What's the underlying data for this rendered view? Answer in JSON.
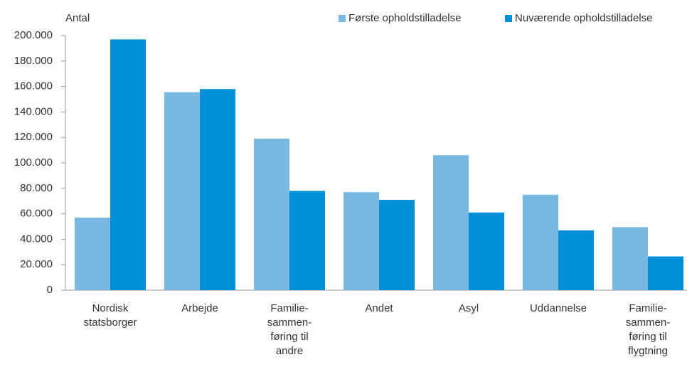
{
  "chart_data": {
    "type": "bar",
    "y_label": "Antal",
    "categories": [
      "Nordisk\nstatsborger",
      "Arbejde",
      "Familie-\nsammen-\nføring til\nandre",
      "Andet",
      "Asyl",
      "Uddannelse",
      "Familie-\nsammen-\nføring til\nflygtning"
    ],
    "series": [
      {
        "name": "Første opholdstilladelse",
        "color": "#7ab8e4",
        "values": [
          57000,
          155500,
          119000,
          77000,
          106000,
          75000,
          49500
        ]
      },
      {
        "name": "Nuværende opholdstilladelse",
        "color": "#0090d8",
        "values": [
          197000,
          158000,
          78000,
          71000,
          61000,
          47000,
          26500
        ]
      }
    ],
    "ylim": [
      0,
      200000
    ],
    "yticks": [
      0,
      {
        "value": 20000,
        "label": "20.000"
      },
      {
        "value": 40000,
        "label": "40.000"
      },
      {
        "value": 60000,
        "label": "60.000"
      },
      {
        "value": 80000,
        "label": "80.000"
      },
      {
        "value": 100000,
        "label": "100.000"
      },
      {
        "value": 120000,
        "label": "120.000"
      },
      {
        "value": 140000,
        "label": "140.000"
      },
      {
        "value": 160000,
        "label": "160.000"
      },
      {
        "value": 180000,
        "label": "180.000"
      },
      {
        "value": 200000,
        "label": "200.000"
      }
    ],
    "legend": "top-right"
  }
}
